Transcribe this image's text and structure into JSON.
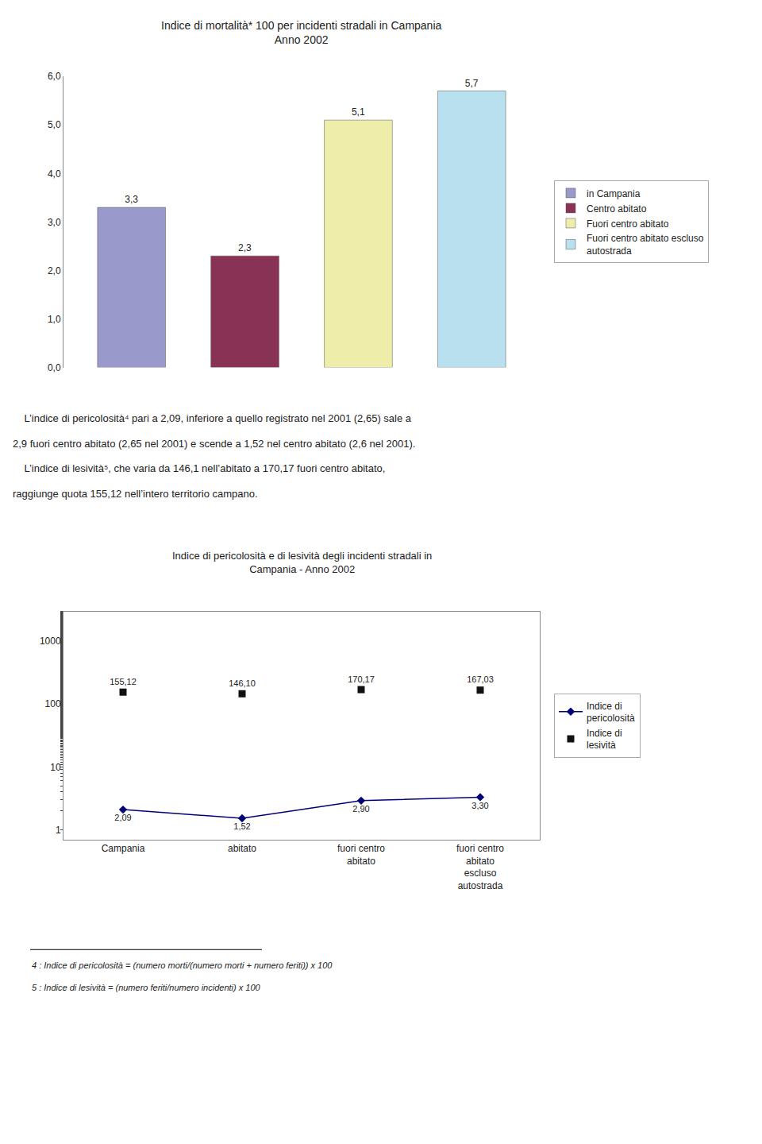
{
  "chart_data": [
    {
      "type": "bar",
      "title": "Indice di mortalità* 100 per incidenti stradali in Campania\nAnno 2002",
      "categories": [
        "in Campania",
        "Centro abitato",
        "Fuori centro abitato",
        "Fuori centro abitato escluso\nautostrada"
      ],
      "values": [
        3.3,
        2.3,
        5.1,
        5.7
      ],
      "value_labels": [
        "3,3",
        "2,3",
        "5,1",
        "5,7"
      ],
      "colors": [
        "#9999cc",
        "#883355",
        "#eeeeaa",
        "#b8e0ee"
      ],
      "ylim": [
        0.0,
        6.0
      ],
      "yticks": [
        {
          "value": 0.0,
          "label": "0,0"
        },
        {
          "value": 1.0,
          "label": "1,0"
        },
        {
          "value": 2.0,
          "label": "2,0"
        },
        {
          "value": 3.0,
          "label": "3,0"
        },
        {
          "value": 4.0,
          "label": "4,0"
        },
        {
          "value": 5.0,
          "label": "5,0"
        },
        {
          "value": 6.0,
          "label": "6,0"
        }
      ],
      "data_labels": true,
      "tick_labels": "y",
      "legend": "right",
      "grid": false,
      "annotations": [
        "    L’indice di pericolosità⁴ pari a 2,09, inferiore a quello registrato nel 2001 (2,65) sale a",
        "2,9 fuori centro abitato (2,65 nel 2001) e scende a 1,52 nel centro abitato (2,6 nel 2001).",
        "    L’indice di lesività⁵, che varia da 146,1 nell’abitato a 170,17 fuori centro abitato,",
        "raggiunge quota 155,12 nell’intero territorio campano."
      ]
    },
    {
      "type": "line",
      "title": "Indice di pericolosità e di lesività degli incidenti stradali in\nCampania - Anno 2002",
      "categories": [
        "Campania",
        "abitato",
        "fuori centro\nabitato",
        "fuori centro\nabitato\nescluso\nautostrada"
      ],
      "series": [
        {
          "name": "Indice di\npericolosità",
          "color": "#000077",
          "marker": "diamond",
          "line_style": "solid",
          "values": [
            2.09,
            1.52,
            2.9,
            3.3
          ],
          "value_labels": [
            "2,09",
            "1,52",
            "2,90",
            "3,30"
          ]
        },
        {
          "name": "Indice di\nlesività",
          "color": "#111111",
          "marker": "square",
          "line_style": "none",
          "values": [
            155.12,
            146.1,
            170.17,
            167.03
          ],
          "value_labels": [
            "155,12",
            "146,10",
            "170,17",
            "167,03"
          ]
        }
      ],
      "log": "y",
      "ylim": [
        0.7,
        3000
      ],
      "yticks": [
        1,
        10,
        100,
        1000
      ],
      "data_labels": true,
      "legend": "right",
      "grid": false,
      "annotations": [
        "4 : Indice di pericolosità = (numero morti/(numero morti + numero feriti)) x 100",
        "5 : Indice di lesività = (numero feriti/numero incidenti) x 100"
      ]
    }
  ]
}
